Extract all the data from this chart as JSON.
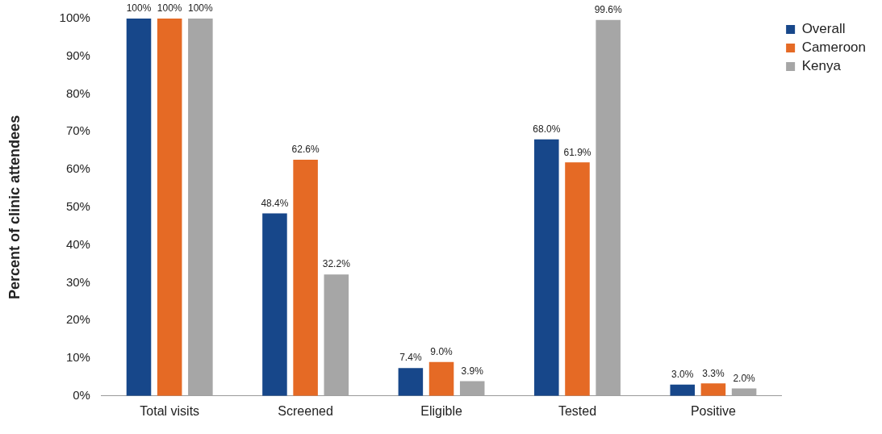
{
  "chart_data": {
    "type": "bar",
    "ylabel": "Percent of clinic attendees",
    "categories": [
      "Total visits",
      "Screened",
      "Eligible",
      "Tested",
      "Positive"
    ],
    "series": [
      {
        "name": "Overall",
        "color": "#17478a",
        "values": [
          100,
          48.4,
          7.4,
          68.0,
          3.0
        ],
        "value_labels": [
          "100%",
          "48.4%",
          "7.4%",
          "68.0%",
          "3.0%"
        ]
      },
      {
        "name": "Cameroon",
        "color": "#e56a25",
        "values": [
          100,
          62.6,
          9.0,
          61.9,
          3.3
        ],
        "value_labels": [
          "100%",
          "62.6%",
          "9.0%",
          "61.9%",
          "3.3%"
        ]
      },
      {
        "name": "Kenya",
        "color": "#a6a6a6",
        "values": [
          100,
          32.2,
          3.9,
          99.6,
          2.0
        ],
        "value_labels": [
          "100%",
          "32.2%",
          "3.9%",
          "99.6%",
          "2.0%"
        ]
      }
    ],
    "ylim": [
      0,
      100
    ],
    "yticks": [
      {
        "value": 0,
        "label": "0%"
      },
      {
        "value": 10,
        "label": "10%"
      },
      {
        "value": 20,
        "label": "20%"
      },
      {
        "value": 30,
        "label": "30%"
      },
      {
        "value": 40,
        "label": "40%"
      },
      {
        "value": 50,
        "label": "50%"
      },
      {
        "value": 60,
        "label": "60%"
      },
      {
        "value": 70,
        "label": "70%"
      },
      {
        "value": 80,
        "label": "80%"
      },
      {
        "value": 90,
        "label": "90%"
      },
      {
        "value": 100,
        "label": "100%"
      }
    ],
    "grid": false,
    "legend": "right"
  }
}
